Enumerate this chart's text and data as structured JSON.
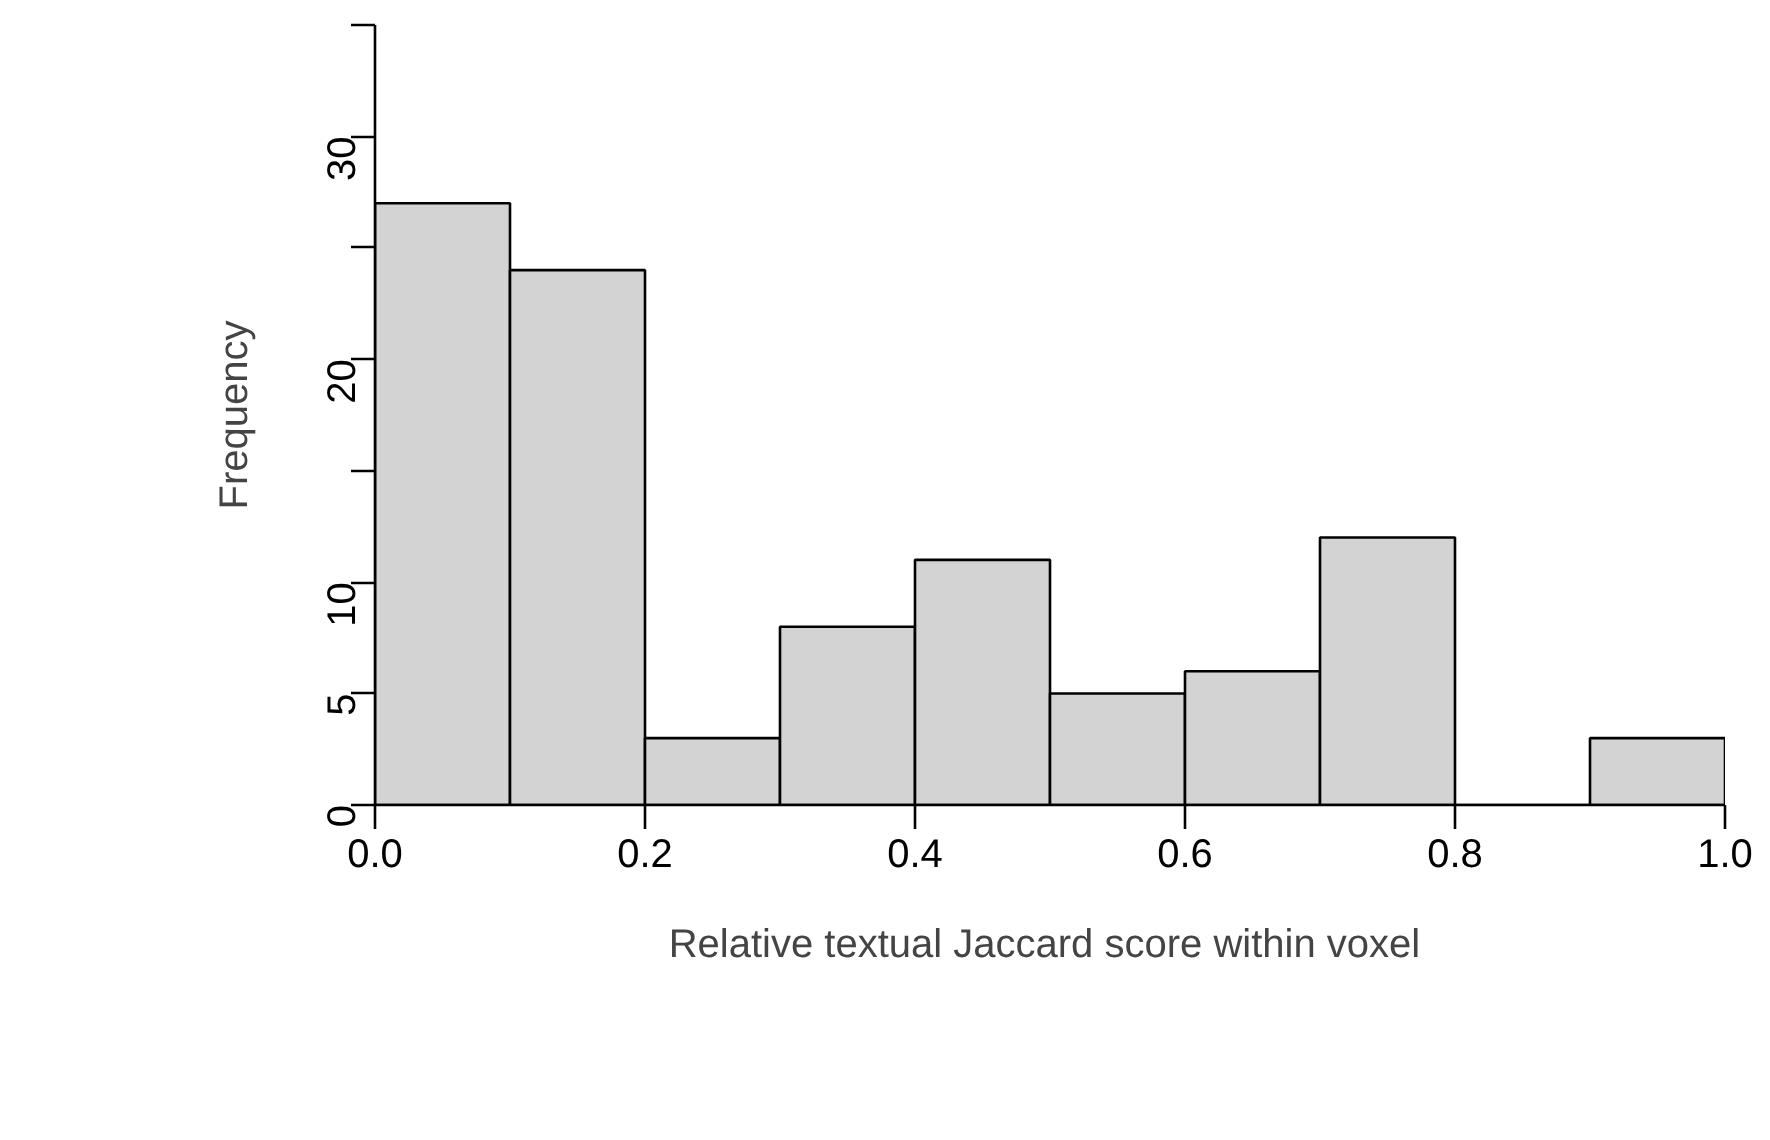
{
  "chart_data": {
    "type": "histogram",
    "xlabel": "Relative textual Jaccard score  within voxel",
    "ylabel": "Frequency",
    "bins": [
      0,
      0.1,
      0.2,
      0.3,
      0.4,
      0.5,
      0.6,
      0.7,
      0.8,
      0.9,
      1.0
    ],
    "values": [
      27,
      24,
      3,
      8,
      11,
      5,
      6,
      12,
      0,
      3
    ],
    "color": "#d3d3d3",
    "xlim": [
      0,
      1
    ],
    "xticks": [
      {
        "value": 0,
        "label": "0.0"
      },
      0.2,
      0.4,
      0.6,
      0.8,
      {
        "value": 1,
        "label": "1.0"
      }
    ],
    "ylim": [
      0,
      35
    ],
    "yticks": [
      0,
      5,
      10,
      {
        "value": 15,
        "label": null
      },
      20,
      {
        "value": 25,
        "label": null
      },
      30,
      {
        "value": 35,
        "label": null
      }
    ],
    "grid": false
  }
}
